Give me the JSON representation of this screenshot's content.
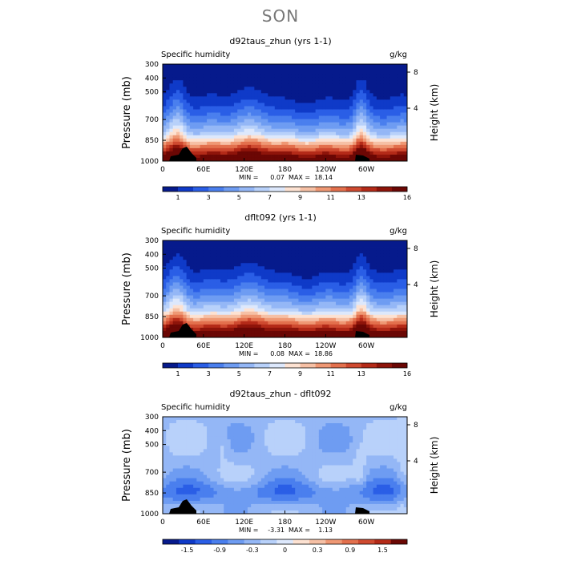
{
  "title": "SON",
  "chart_data": [
    {
      "type": "heatmap",
      "title": "d92taus_zhun (yrs 1-1)",
      "left_label": "Specific humidity",
      "units": "g/kg",
      "ylabel": "Pressure (mb)",
      "y2label": "Height (km)",
      "yticks": [
        "300",
        "400",
        "500",
        "700",
        "850",
        "1000"
      ],
      "y2ticks": [
        "8",
        "4"
      ],
      "xticks": [
        "0",
        "60E",
        "120E",
        "180",
        "120W",
        "60W"
      ],
      "min_label": "MIN =",
      "min_value": "0.07",
      "max_label": "MAX =",
      "max_value": "18.14",
      "colorbar_labels": [
        "1",
        "3",
        "5",
        "7",
        "9",
        "11",
        "13",
        "16"
      ],
      "colorbar_colors": [
        "#061a8c",
        "#0f3ac8",
        "#2a5ee6",
        "#4a7fee",
        "#6e9cf2",
        "#94b7f6",
        "#b8d1fa",
        "#dde8fc",
        "#fde2d2",
        "#f6c0a5",
        "#ef9874",
        "#e3704d",
        "#cf4a30",
        "#b42a18",
        "#8e140a",
        "#6b0704"
      ],
      "field": "full"
    },
    {
      "type": "heatmap",
      "title": "dflt092 (yrs 1-1)",
      "left_label": "Specific humidity",
      "units": "g/kg",
      "ylabel": "Pressure (mb)",
      "y2label": "Height (km)",
      "yticks": [
        "300",
        "400",
        "500",
        "700",
        "850",
        "1000"
      ],
      "y2ticks": [
        "8",
        "4"
      ],
      "xticks": [
        "0",
        "60E",
        "120E",
        "180",
        "120W",
        "60W"
      ],
      "min_label": "MIN =",
      "min_value": "0.08",
      "max_label": "MAX =",
      "max_value": "18.86",
      "colorbar_labels": [
        "1",
        "3",
        "5",
        "7",
        "9",
        "11",
        "13",
        "16"
      ],
      "colorbar_colors": [
        "#061a8c",
        "#0f3ac8",
        "#2a5ee6",
        "#4a7fee",
        "#6e9cf2",
        "#94b7f6",
        "#b8d1fa",
        "#dde8fc",
        "#fde2d2",
        "#f6c0a5",
        "#ef9874",
        "#e3704d",
        "#cf4a30",
        "#b42a18",
        "#8e140a",
        "#6b0704"
      ],
      "field": "full"
    },
    {
      "type": "heatmap",
      "title": "d92taus_zhun - dflt092",
      "left_label": "Specific humidity",
      "units": "g/kg",
      "ylabel": "Pressure (mb)",
      "y2label": "Height (km)",
      "yticks": [
        "300",
        "400",
        "500",
        "700",
        "850",
        "1000"
      ],
      "y2ticks": [
        "8",
        "4"
      ],
      "xticks": [
        "0",
        "60E",
        "120E",
        "180",
        "120W",
        "60W"
      ],
      "min_label": "MIN =",
      "min_value": "-3.31",
      "max_label": "MAX =",
      "max_value": "1.13",
      "colorbar_labels": [
        "-1.5",
        "-0.9",
        "-0.3",
        "0",
        "0.3",
        "0.9",
        "1.5"
      ],
      "colorbar_colors": [
        "#061a8c",
        "#0f3ac8",
        "#2a5ee6",
        "#4a7fee",
        "#6e9cf2",
        "#94b7f6",
        "#b8d1fa",
        "#dde8fc",
        "#fde2d2",
        "#f6c0a5",
        "#ef9874",
        "#e3704d",
        "#cf4a30",
        "#b42a18",
        "#6b0704"
      ],
      "field": "diff"
    }
  ]
}
